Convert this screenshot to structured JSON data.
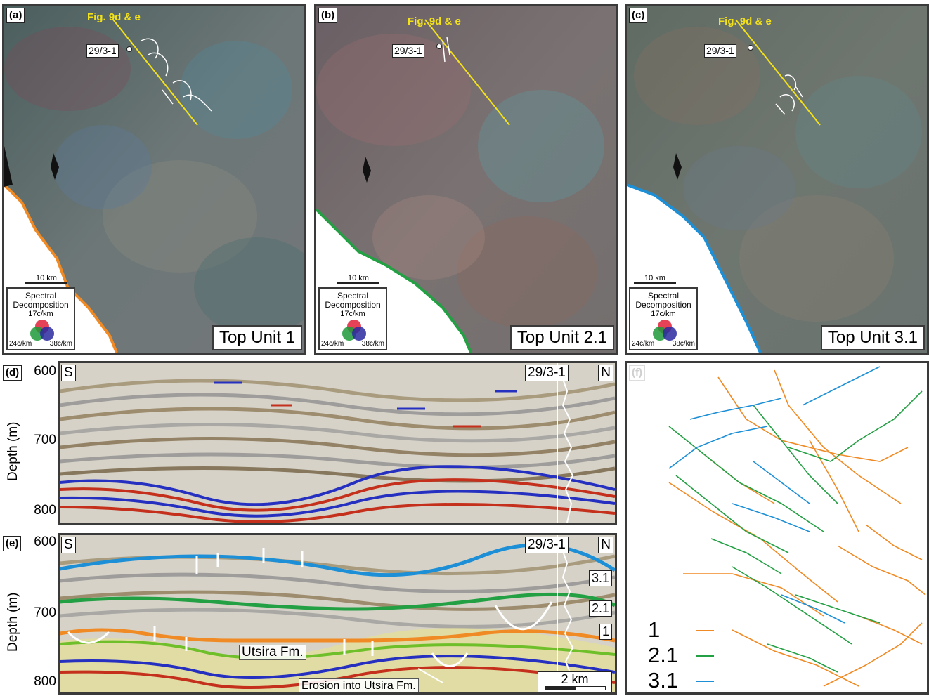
{
  "maps": [
    {
      "label": "(a)",
      "title": "Top Unit 1",
      "boundary_color": "#f08a24",
      "base_color": "#566a66"
    },
    {
      "label": "(b)",
      "title": "Top Unit 2.1",
      "boundary_color": "#23a043",
      "base_color": "#6a6060"
    },
    {
      "label": "(c)",
      "title": "Top Unit 3.1",
      "boundary_color": "#1c8fd6",
      "base_color": "#637068"
    }
  ],
  "map_common": {
    "fig_ref": "Fig. 9d & e",
    "well": "29/3-1",
    "scale": "10 km",
    "legend": {
      "line1": "Spectral",
      "line2": "Decomposition",
      "f_red": "17c/km",
      "f_green": "24c/km",
      "f_blue": "38c/km"
    }
  },
  "sections": {
    "d": {
      "label": "(d)"
    },
    "e": {
      "label": "(e)"
    },
    "ylabel": "Depth (m)",
    "ticks": [
      "600",
      "700",
      "800"
    ],
    "left": "S",
    "right": "N",
    "well": "29/3-1",
    "horizons": [
      {
        "name": "3.1",
        "color": "#1c8fd6"
      },
      {
        "name": "2.1",
        "color": "#23a043"
      },
      {
        "name": "1",
        "color": "#f08a24"
      }
    ],
    "utsira": "Utsira Fm.",
    "erosion": "Erosion into Utsira Fm.",
    "scale": "2 km"
  },
  "panel_f": {
    "label": "(f)",
    "legend": [
      {
        "name": "1",
        "color": "#f08a24"
      },
      {
        "name": "2.1",
        "color": "#23a043"
      },
      {
        "name": "3.1",
        "color": "#1c8fd6"
      }
    ]
  }
}
